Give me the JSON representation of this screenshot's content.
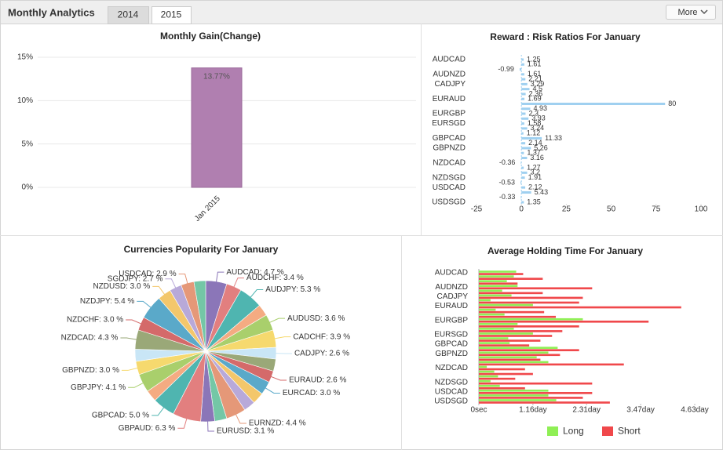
{
  "header": {
    "title": "Monthly Analytics",
    "tabs": [
      "2014",
      "2015"
    ],
    "active_tab": 1,
    "button": "More"
  },
  "chart_data": [
    {
      "type": "bar",
      "title": "Monthly Gain(Change)",
      "categories": [
        "Jan 2015"
      ],
      "values": [
        13.77
      ],
      "value_labels": [
        "13.77%"
      ],
      "color": "#b07fb0",
      "ylim": [
        0,
        15
      ],
      "yticks": [
        {
          "value": 0,
          "label": "0%"
        },
        {
          "value": 5,
          "label": "5%"
        },
        {
          "value": 10,
          "label": "10%"
        },
        {
          "value": 15,
          "label": "15%"
        }
      ],
      "grid": true
    },
    {
      "type": "hbar",
      "title": "Reward : Risk Ratios For January",
      "categories": [
        "AUDCAD",
        null,
        null,
        "AUDNZD",
        null,
        "CADJPY",
        null,
        null,
        "EURAUD",
        null,
        null,
        "EURGBP",
        null,
        "EURSGD",
        null,
        null,
        "GBPCAD",
        null,
        "GBPNZD",
        null,
        null,
        "NZDCAD",
        null,
        null,
        "NZDSGD",
        null,
        "USDCAD",
        null,
        null,
        "USDSGD"
      ],
      "values": [
        1.25,
        1.61,
        -0.99,
        1.61,
        2.21,
        3.29,
        4.5,
        2.36,
        1.69,
        80,
        4.93,
        2.3,
        3.93,
        1.58,
        3.24,
        1.12,
        11.33,
        2.14,
        5.26,
        1.37,
        3.16,
        -0.36,
        1.27,
        3.2,
        1.91,
        -0.53,
        2.12,
        5.43,
        -0.33,
        1.35
      ],
      "color": "#9fd0f0",
      "xlim": [
        -25,
        100
      ],
      "xticks": [
        -25,
        0,
        25,
        50,
        75,
        100
      ],
      "grid": false
    },
    {
      "type": "pie",
      "title": "Currencies Popularity For January",
      "values": [
        4.7,
        3.4,
        5.3,
        2.6,
        3.6,
        3.9,
        2.6,
        2.7,
        2.6,
        3.0,
        2.6,
        2.6,
        4.4,
        2.7,
        3.1,
        6.3,
        5.0,
        2.6,
        4.1,
        3.0,
        2.7,
        4.3,
        3.0,
        5.4,
        3.0,
        2.7,
        2.9,
        2.6
      ],
      "value_labels": [
        "AUDCAD: 4.7 %",
        "AUDCHF: 3.4 %",
        "AUDJPY: 5.3 %",
        null,
        "AUDUSD: 3.6 %",
        "CADCHF: 3.9 %",
        "CADJPY: 2.6 %",
        null,
        "EURAUD: 2.6 %",
        "EURCAD: 3.0 %",
        null,
        null,
        "EURNZD: 4.4 %",
        null,
        "EURUSD: 3.1 %",
        "GBPAUD: 6.3 %",
        "GBPCAD: 5.0 %",
        null,
        "GBPJPY: 4.1 %",
        "GBPNZD: 3.0 %",
        null,
        "NZDCAD: 4.3 %",
        "NZDCHF: 3.0 %",
        "NZDJPY: 5.4 %",
        "NZDUSD: 3.0 %",
        "SGDJPY: 2.7 %",
        "USDCAD: 2.9 %",
        null
      ],
      "colors": [
        "#8b76b8",
        "#e27f7f",
        "#4fb5b0",
        "#f4ab82",
        "#a9cf6c",
        "#f6d96e",
        "#c9e6f6",
        "#9aa878",
        "#d46a6a",
        "#5aa9c9",
        "#f3c76b",
        "#b8a9d9",
        "#e59878",
        "#74c7a6"
      ]
    },
    {
      "type": "grouped-hbar",
      "title": "Average Holding Time For January",
      "categories": [
        "AUDCAD",
        null,
        null,
        "AUDNZD",
        null,
        "CADJPY",
        null,
        "EURAUD",
        null,
        null,
        "EURGBP",
        null,
        null,
        "EURSGD",
        null,
        "GBPCAD",
        null,
        "GBPNZD",
        null,
        null,
        "NZDCAD",
        null,
        null,
        "NZDSGD",
        null,
        "USDCAD",
        null,
        "USDSGD"
      ],
      "series": [
        {
          "name": "Long",
          "color": "#8fef55",
          "values": [
            0.8,
            0.75,
            0.6,
            0.83,
            0.5,
            0.7,
            0.25,
            1.16,
            0.36,
            0.55,
            2.23,
            0.83,
            0.75,
            1.16,
            0.63,
            0.66,
            1.69,
            1.49,
            1.24,
            1.49,
            0.17,
            0.33,
            0.41,
            0.25,
            0.45,
            1.49,
            1.49,
            1.66
          ]
        },
        {
          "name": "Short",
          "color": "#f0484b",
          "values": [
            0.95,
            1.37,
            0.83,
            2.43,
            1.37,
            2.23,
            2.15,
            4.34,
            1.4,
            1.65,
            3.64,
            2.15,
            1.79,
            1.57,
            1.32,
            1.08,
            2.15,
            1.74,
            1.32,
            3.11,
            0.99,
            1.16,
            0.78,
            2.43,
            0.99,
            2.43,
            2.23,
            2.81
          ]
        }
      ],
      "xlim": [
        0,
        4.63
      ],
      "xticks": [
        {
          "value": 0,
          "label": "0sec"
        },
        {
          "value": 1.16,
          "label": "1.16day"
        },
        {
          "value": 2.31,
          "label": "2.31day"
        },
        {
          "value": 3.47,
          "label": "3.47day"
        },
        {
          "value": 4.63,
          "label": "4.63day"
        }
      ],
      "legend": "bottom"
    }
  ]
}
